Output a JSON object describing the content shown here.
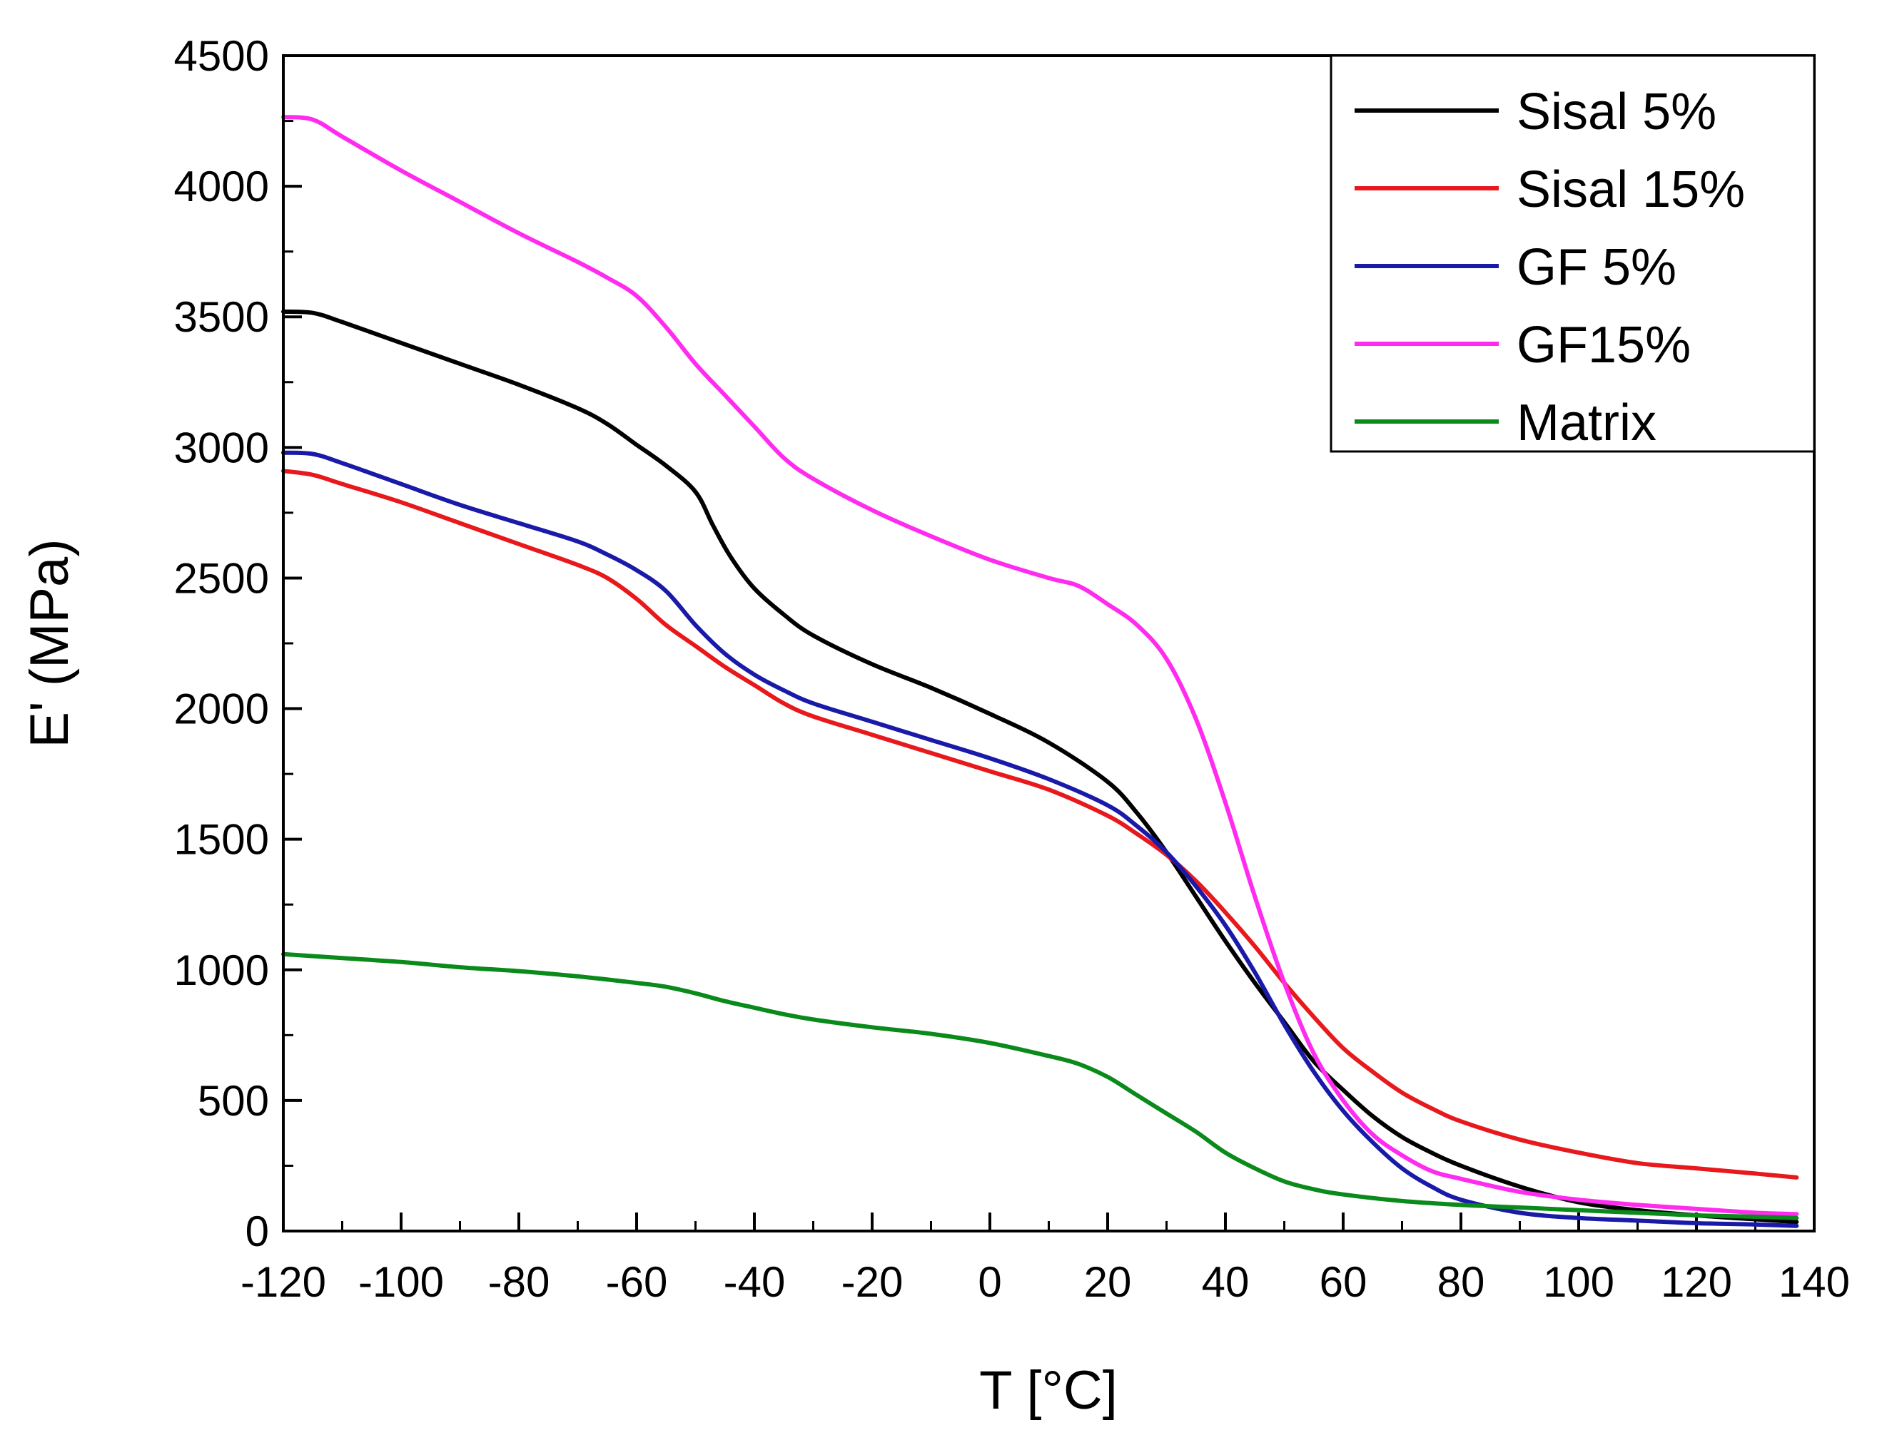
{
  "chart_data": {
    "type": "line",
    "title": "",
    "xlabel": "T [°C]",
    "ylabel": "E' (MPa)",
    "xlim": [
      -120,
      140
    ],
    "ylim": [
      0,
      4500
    ],
    "xticks": [
      -120,
      -100,
      -80,
      -60,
      -40,
      -20,
      0,
      20,
      40,
      60,
      80,
      100,
      120,
      140
    ],
    "yticks": [
      0,
      500,
      1000,
      1500,
      2000,
      2500,
      3000,
      3500,
      4000,
      4500
    ],
    "x_tick_labels": [
      "-120",
      "-100",
      "-80",
      "-60",
      "-40",
      "-20",
      "0",
      "20",
      "40",
      "60",
      "80",
      "100",
      "120",
      "140"
    ],
    "y_tick_labels": [
      "0",
      "500",
      "1000",
      "1500",
      "2000",
      "2500",
      "3000",
      "3500",
      "4000",
      "4500"
    ],
    "grid": false,
    "legend_position": "top-right",
    "series": [
      {
        "name": "Sisal 5%",
        "color": "#000000",
        "x": [
          -120,
          -115,
          -110,
          -100,
          -90,
          -80,
          -70,
          -65,
          -60,
          -55,
          -50,
          -47,
          -44,
          -40,
          -35,
          -30,
          -20,
          -10,
          0,
          10,
          20,
          25,
          30,
          35,
          40,
          45,
          50,
          55,
          60,
          65,
          70,
          75,
          80,
          90,
          100,
          110,
          120,
          130,
          137
        ],
        "y": [
          3520,
          3515,
          3480,
          3400,
          3320,
          3240,
          3150,
          3090,
          3010,
          2930,
          2830,
          2700,
          2580,
          2460,
          2360,
          2280,
          2170,
          2080,
          1980,
          1870,
          1720,
          1600,
          1450,
          1280,
          1110,
          950,
          800,
          650,
          540,
          440,
          360,
          300,
          250,
          170,
          110,
          80,
          60,
          45,
          35
        ]
      },
      {
        "name": "Sisal 15%",
        "color": "#e8191c",
        "x": [
          -120,
          -115,
          -110,
          -100,
          -90,
          -80,
          -70,
          -65,
          -60,
          -55,
          -50,
          -45,
          -40,
          -35,
          -30,
          -20,
          -10,
          0,
          10,
          20,
          25,
          30,
          35,
          40,
          45,
          50,
          55,
          60,
          65,
          70,
          75,
          80,
          90,
          100,
          110,
          120,
          130,
          137
        ],
        "y": [
          2910,
          2895,
          2860,
          2790,
          2710,
          2630,
          2550,
          2500,
          2420,
          2320,
          2240,
          2160,
          2090,
          2020,
          1970,
          1900,
          1830,
          1760,
          1690,
          1590,
          1520,
          1440,
          1340,
          1220,
          1090,
          950,
          820,
          700,
          610,
          530,
          470,
          420,
          350,
          300,
          260,
          240,
          220,
          205
        ]
      },
      {
        "name": "GF 5%",
        "color": "#1a1aa8",
        "x": [
          -120,
          -115,
          -110,
          -100,
          -90,
          -80,
          -70,
          -65,
          -60,
          -55,
          -50,
          -45,
          -40,
          -35,
          -30,
          -20,
          -10,
          0,
          10,
          20,
          25,
          30,
          35,
          40,
          45,
          50,
          55,
          60,
          65,
          70,
          75,
          80,
          90,
          100,
          110,
          120,
          130,
          137
        ],
        "y": [
          2980,
          2975,
          2940,
          2860,
          2780,
          2710,
          2640,
          2590,
          2530,
          2450,
          2320,
          2210,
          2130,
          2070,
          2020,
          1950,
          1880,
          1810,
          1730,
          1630,
          1550,
          1450,
          1320,
          1170,
          990,
          790,
          610,
          460,
          340,
          240,
          170,
          120,
          70,
          50,
          40,
          30,
          25,
          20
        ]
      },
      {
        "name": "GF15%",
        "color": "#ff2cf0",
        "x": [
          -120,
          -115,
          -110,
          -100,
          -90,
          -80,
          -70,
          -65,
          -60,
          -55,
          -50,
          -45,
          -40,
          -35,
          -30,
          -20,
          -10,
          0,
          10,
          15,
          20,
          25,
          30,
          35,
          40,
          45,
          50,
          55,
          60,
          65,
          70,
          75,
          80,
          90,
          100,
          110,
          120,
          130,
          137
        ],
        "y": [
          4265,
          4255,
          4190,
          4060,
          3940,
          3820,
          3710,
          3650,
          3580,
          3460,
          3320,
          3200,
          3080,
          2960,
          2880,
          2760,
          2660,
          2570,
          2500,
          2470,
          2400,
          2320,
          2190,
          1960,
          1640,
          1280,
          950,
          680,
          500,
          370,
          290,
          230,
          200,
          150,
          120,
          100,
          85,
          70,
          65
        ]
      },
      {
        "name": "Matrix",
        "color": "#0a8a1a",
        "x": [
          -120,
          -110,
          -100,
          -90,
          -80,
          -70,
          -60,
          -55,
          -50,
          -45,
          -40,
          -35,
          -30,
          -20,
          -10,
          0,
          10,
          15,
          20,
          25,
          30,
          35,
          40,
          45,
          50,
          55,
          60,
          70,
          80,
          90,
          100,
          110,
          120,
          130,
          137
        ],
        "y": [
          1060,
          1045,
          1030,
          1010,
          995,
          975,
          950,
          935,
          910,
          880,
          855,
          830,
          810,
          780,
          755,
          720,
          670,
          640,
          590,
          520,
          450,
          380,
          300,
          240,
          190,
          160,
          140,
          115,
          100,
          90,
          80,
          70,
          60,
          55,
          50
        ]
      }
    ]
  }
}
